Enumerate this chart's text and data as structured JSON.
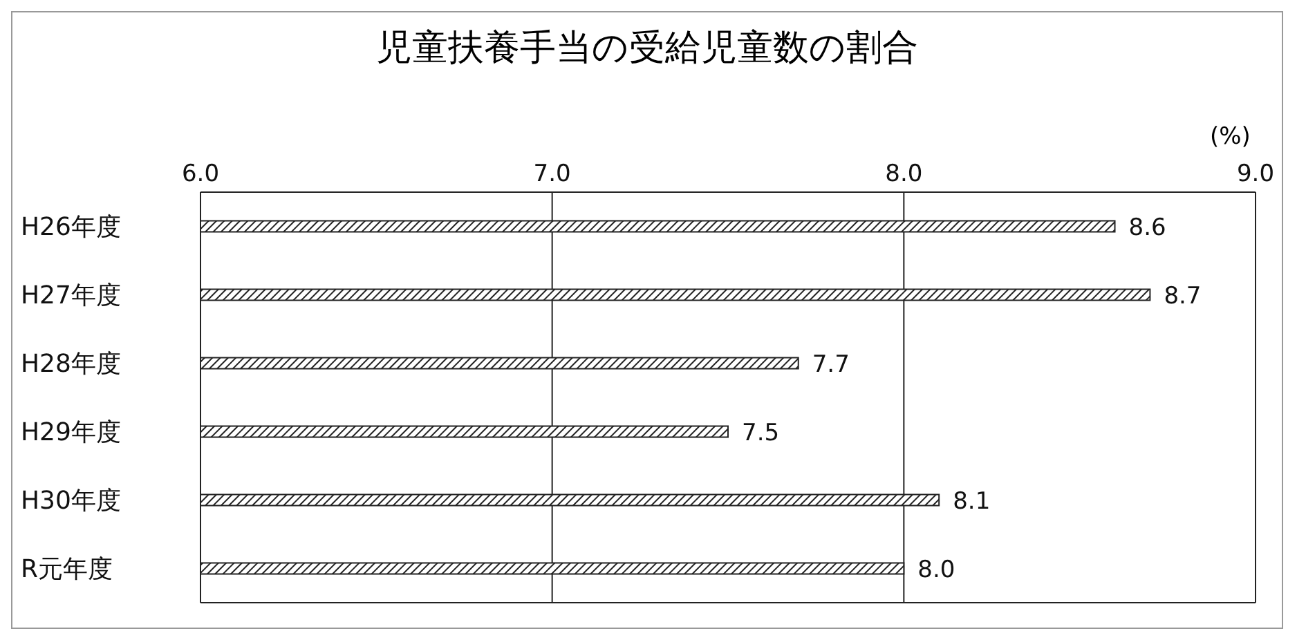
{
  "chart_data": {
    "type": "bar",
    "orientation": "horizontal",
    "title": "児童扶養手当の受給児童数の割合",
    "xlabel": "(%)",
    "categories": [
      "H26年度",
      "H27年度",
      "H28年度",
      "H29年度",
      "H30年度",
      "R元年度"
    ],
    "values": [
      8.6,
      8.7,
      7.7,
      7.5,
      8.1,
      8.0
    ],
    "value_labels": [
      "8.6",
      "8.7",
      "7.7",
      "7.5",
      "8.1",
      "8.0"
    ],
    "color": "#222222",
    "xlim": [
      6,
      9
    ],
    "xticks": [
      {
        "value": 6,
        "label": "6.0"
      },
      {
        "value": 7,
        "label": "7.0"
      },
      {
        "value": 8,
        "label": "8.0"
      },
      {
        "value": 9,
        "label": "9.0"
      }
    ],
    "grid": "x",
    "legend": false
  }
}
